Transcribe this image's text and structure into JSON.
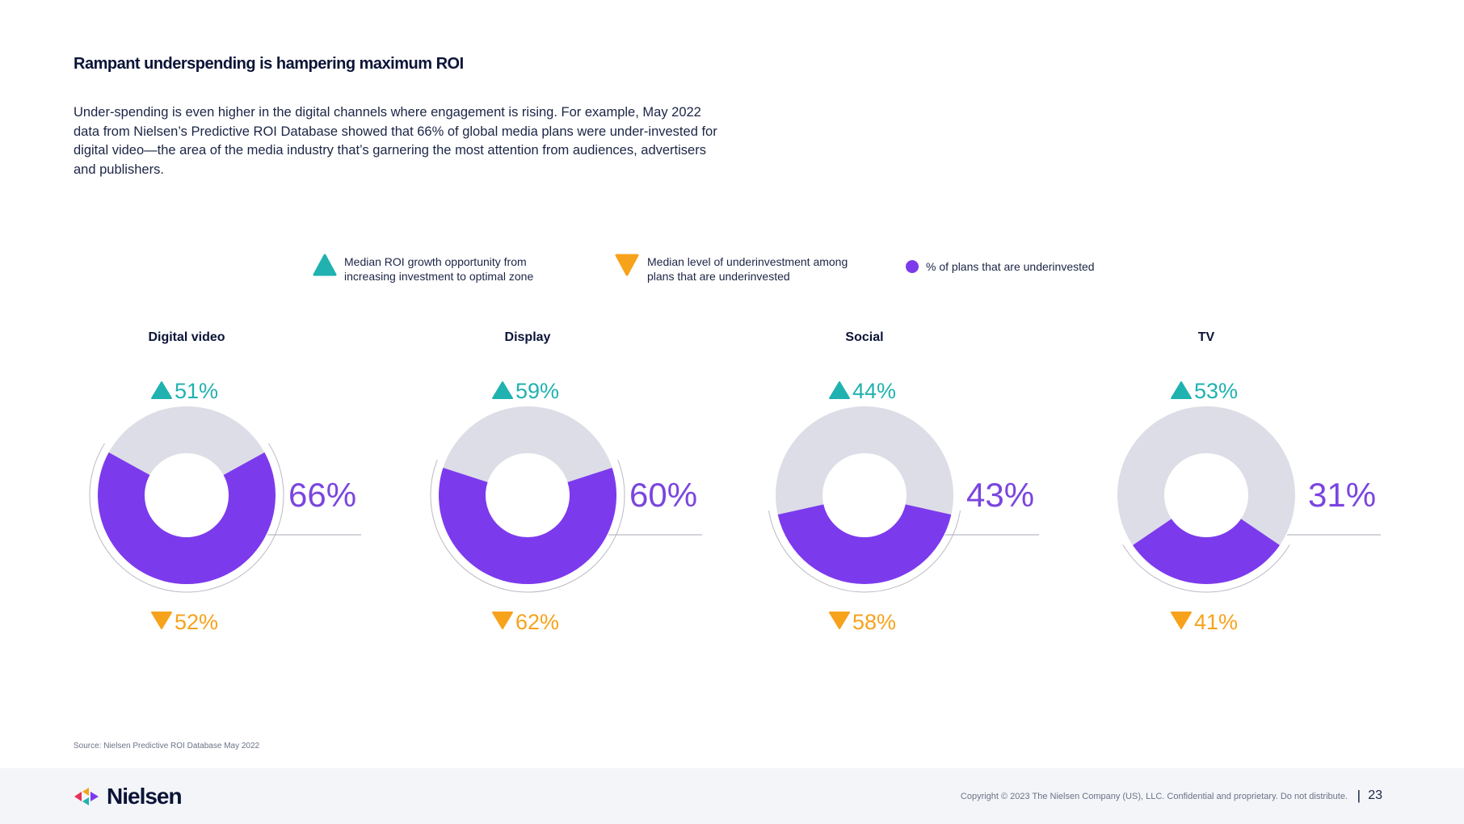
{
  "page": {
    "title": "Rampant underspending is hampering maximum ROI",
    "intro": "Under-spending is even higher in the digital channels where engagement is rising. For example, May 2022 data from Nielsen’s Predictive ROI Database showed that 66% of global media plans were under-invested for digital video—the area of the media industry that’s garnering the most attention from audiences, advertisers and publishers.",
    "source": "Source: Nielsen Predictive ROI Database May 2022"
  },
  "legend": {
    "roi_growth": "Median ROI growth opportunity from increasing investment to optimal zone",
    "underinvestment": "Median level of underinvestment among plans that are underinvested",
    "plans": "% of plans that are underinvested"
  },
  "colors": {
    "teal": "#1fb2b0",
    "orange": "#f7a21b",
    "purple": "#7c3aed",
    "grey": "#dcdde6",
    "text_purple": "#7a45e0"
  },
  "chart_data": {
    "type": "donut",
    "title": "Rampant underspending is hampering maximum ROI",
    "series_names": {
      "roi_growth": "Median ROI growth opportunity from increasing investment to optimal zone",
      "underinvestment": "Median level of underinvestment among plans that are underinvested",
      "plans_underinvested": "% of plans that are underinvested"
    },
    "categories": [
      "Digital video",
      "Display",
      "Social",
      "TV"
    ],
    "plans_underinvested": [
      66,
      60,
      43,
      31
    ],
    "roi_growth": [
      51,
      59,
      44,
      53
    ],
    "underinvestment": [
      52,
      62,
      58,
      41
    ],
    "labels": {
      "plans_underinvested": [
        "66%",
        "60%",
        "43%",
        "31%"
      ],
      "roi_growth": [
        "51%",
        "59%",
        "44%",
        "53%"
      ],
      "underinvestment": [
        "52%",
        "62%",
        "58%",
        "41%"
      ]
    }
  },
  "footer": {
    "logo_text": "Nielsen",
    "copyright": "Copyright © 2023 The Nielsen Company (US), LLC. Confidential and proprietary. Do not distribute.",
    "separator": "|",
    "page_number": "23"
  }
}
